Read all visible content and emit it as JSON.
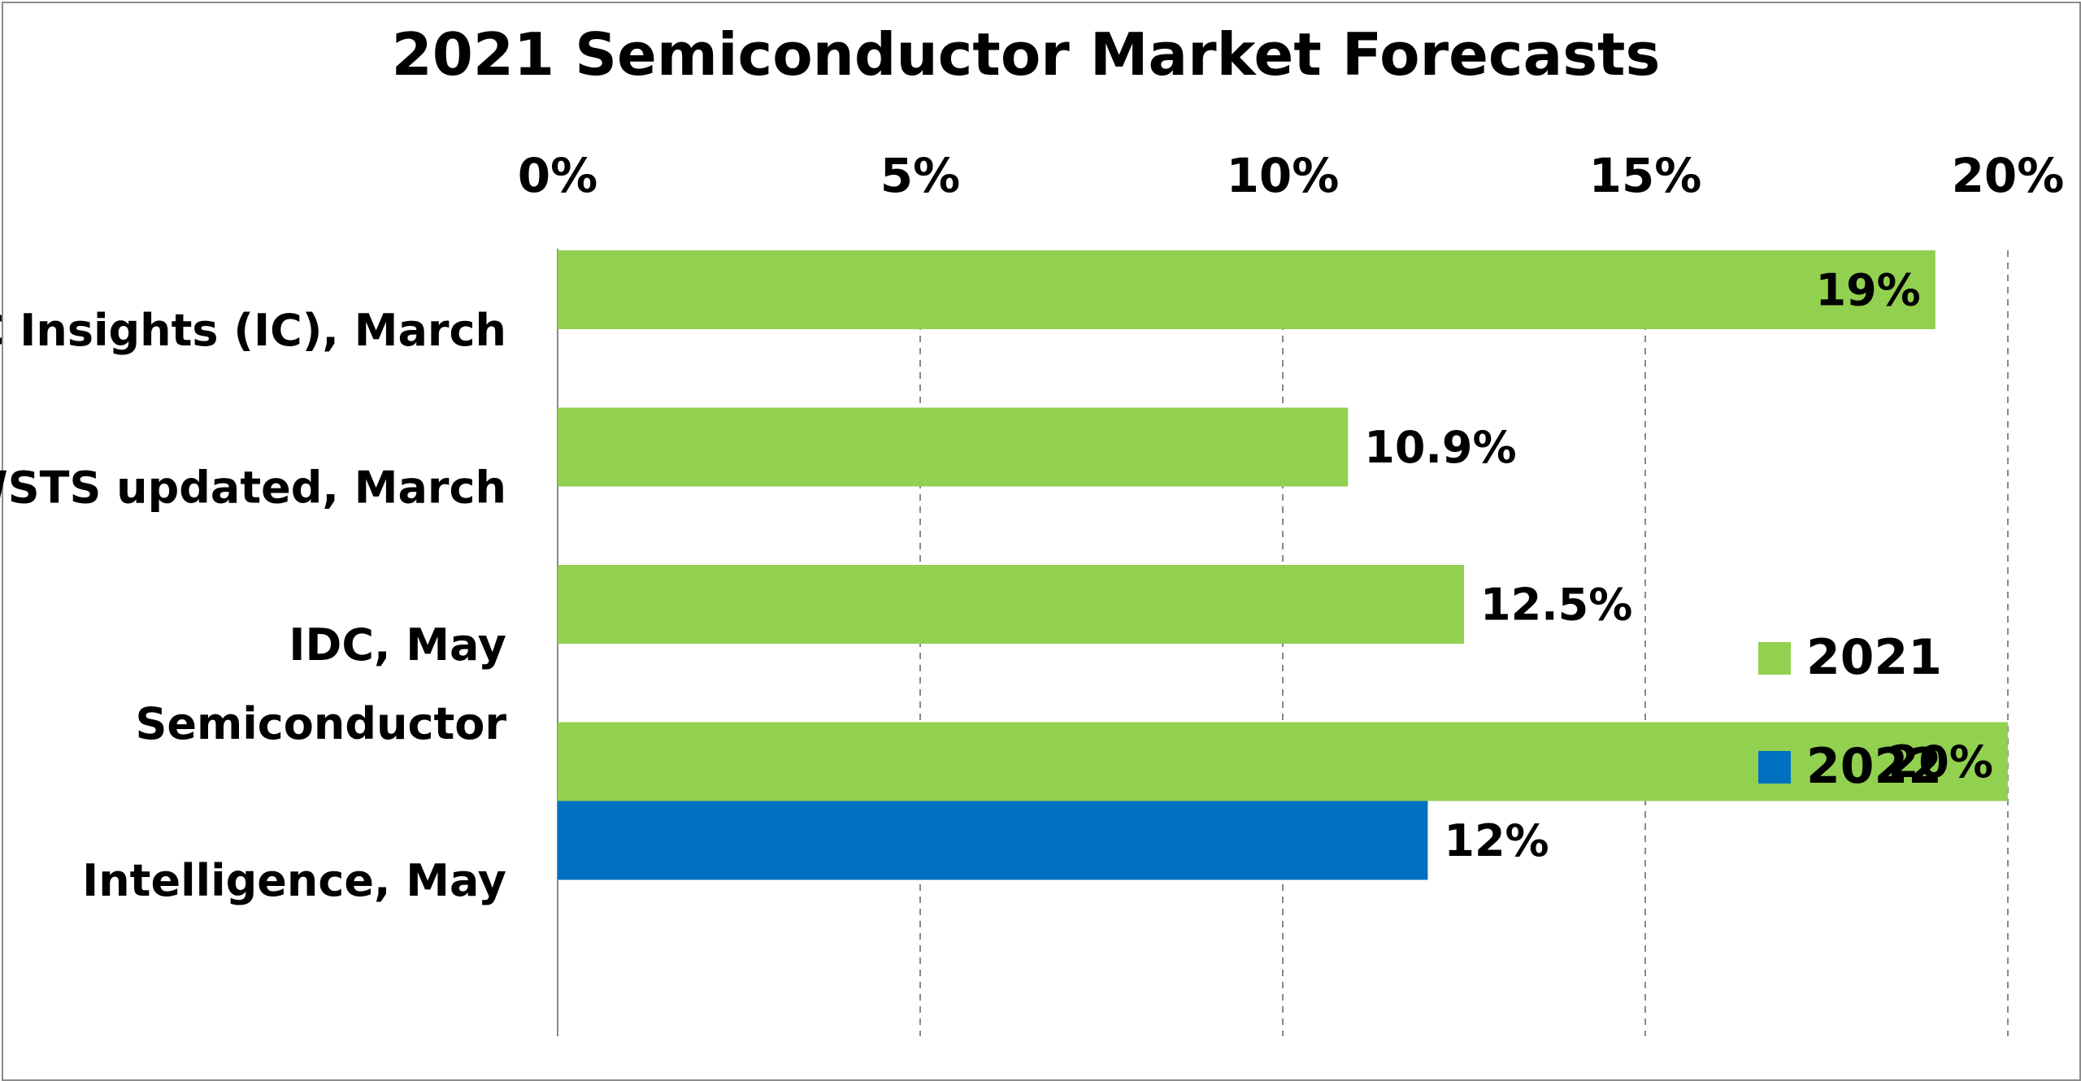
{
  "chart_data": {
    "type": "bar",
    "orientation": "horizontal",
    "title": "2021 Semiconductor Market Forecasts",
    "x_ticks": [
      "0%",
      "5%",
      "10%",
      "15%",
      "20%"
    ],
    "xlim": [
      0,
      20
    ],
    "x_axis_position": "top",
    "grid": "vertical-dashed",
    "legend_position": "right",
    "categories": [
      {
        "lines": [
          "IC Insights (IC), March"
        ]
      },
      {
        "lines": [
          "WSTS updated, March"
        ]
      },
      {
        "lines": [
          "IDC, May"
        ]
      },
      {
        "lines": [
          "Semiconductor",
          "Intelligence, May"
        ]
      }
    ],
    "series": [
      {
        "name": "2021",
        "color": "#92d050",
        "values": [
          19,
          10.9,
          12.5,
          20
        ],
        "labels": [
          "19%",
          "10.9%",
          "12.5%",
          "20%"
        ]
      },
      {
        "name": "2022",
        "color": "#0070c0",
        "values": [
          null,
          null,
          null,
          12
        ],
        "labels": [
          null,
          null,
          null,
          "12%"
        ]
      }
    ]
  }
}
